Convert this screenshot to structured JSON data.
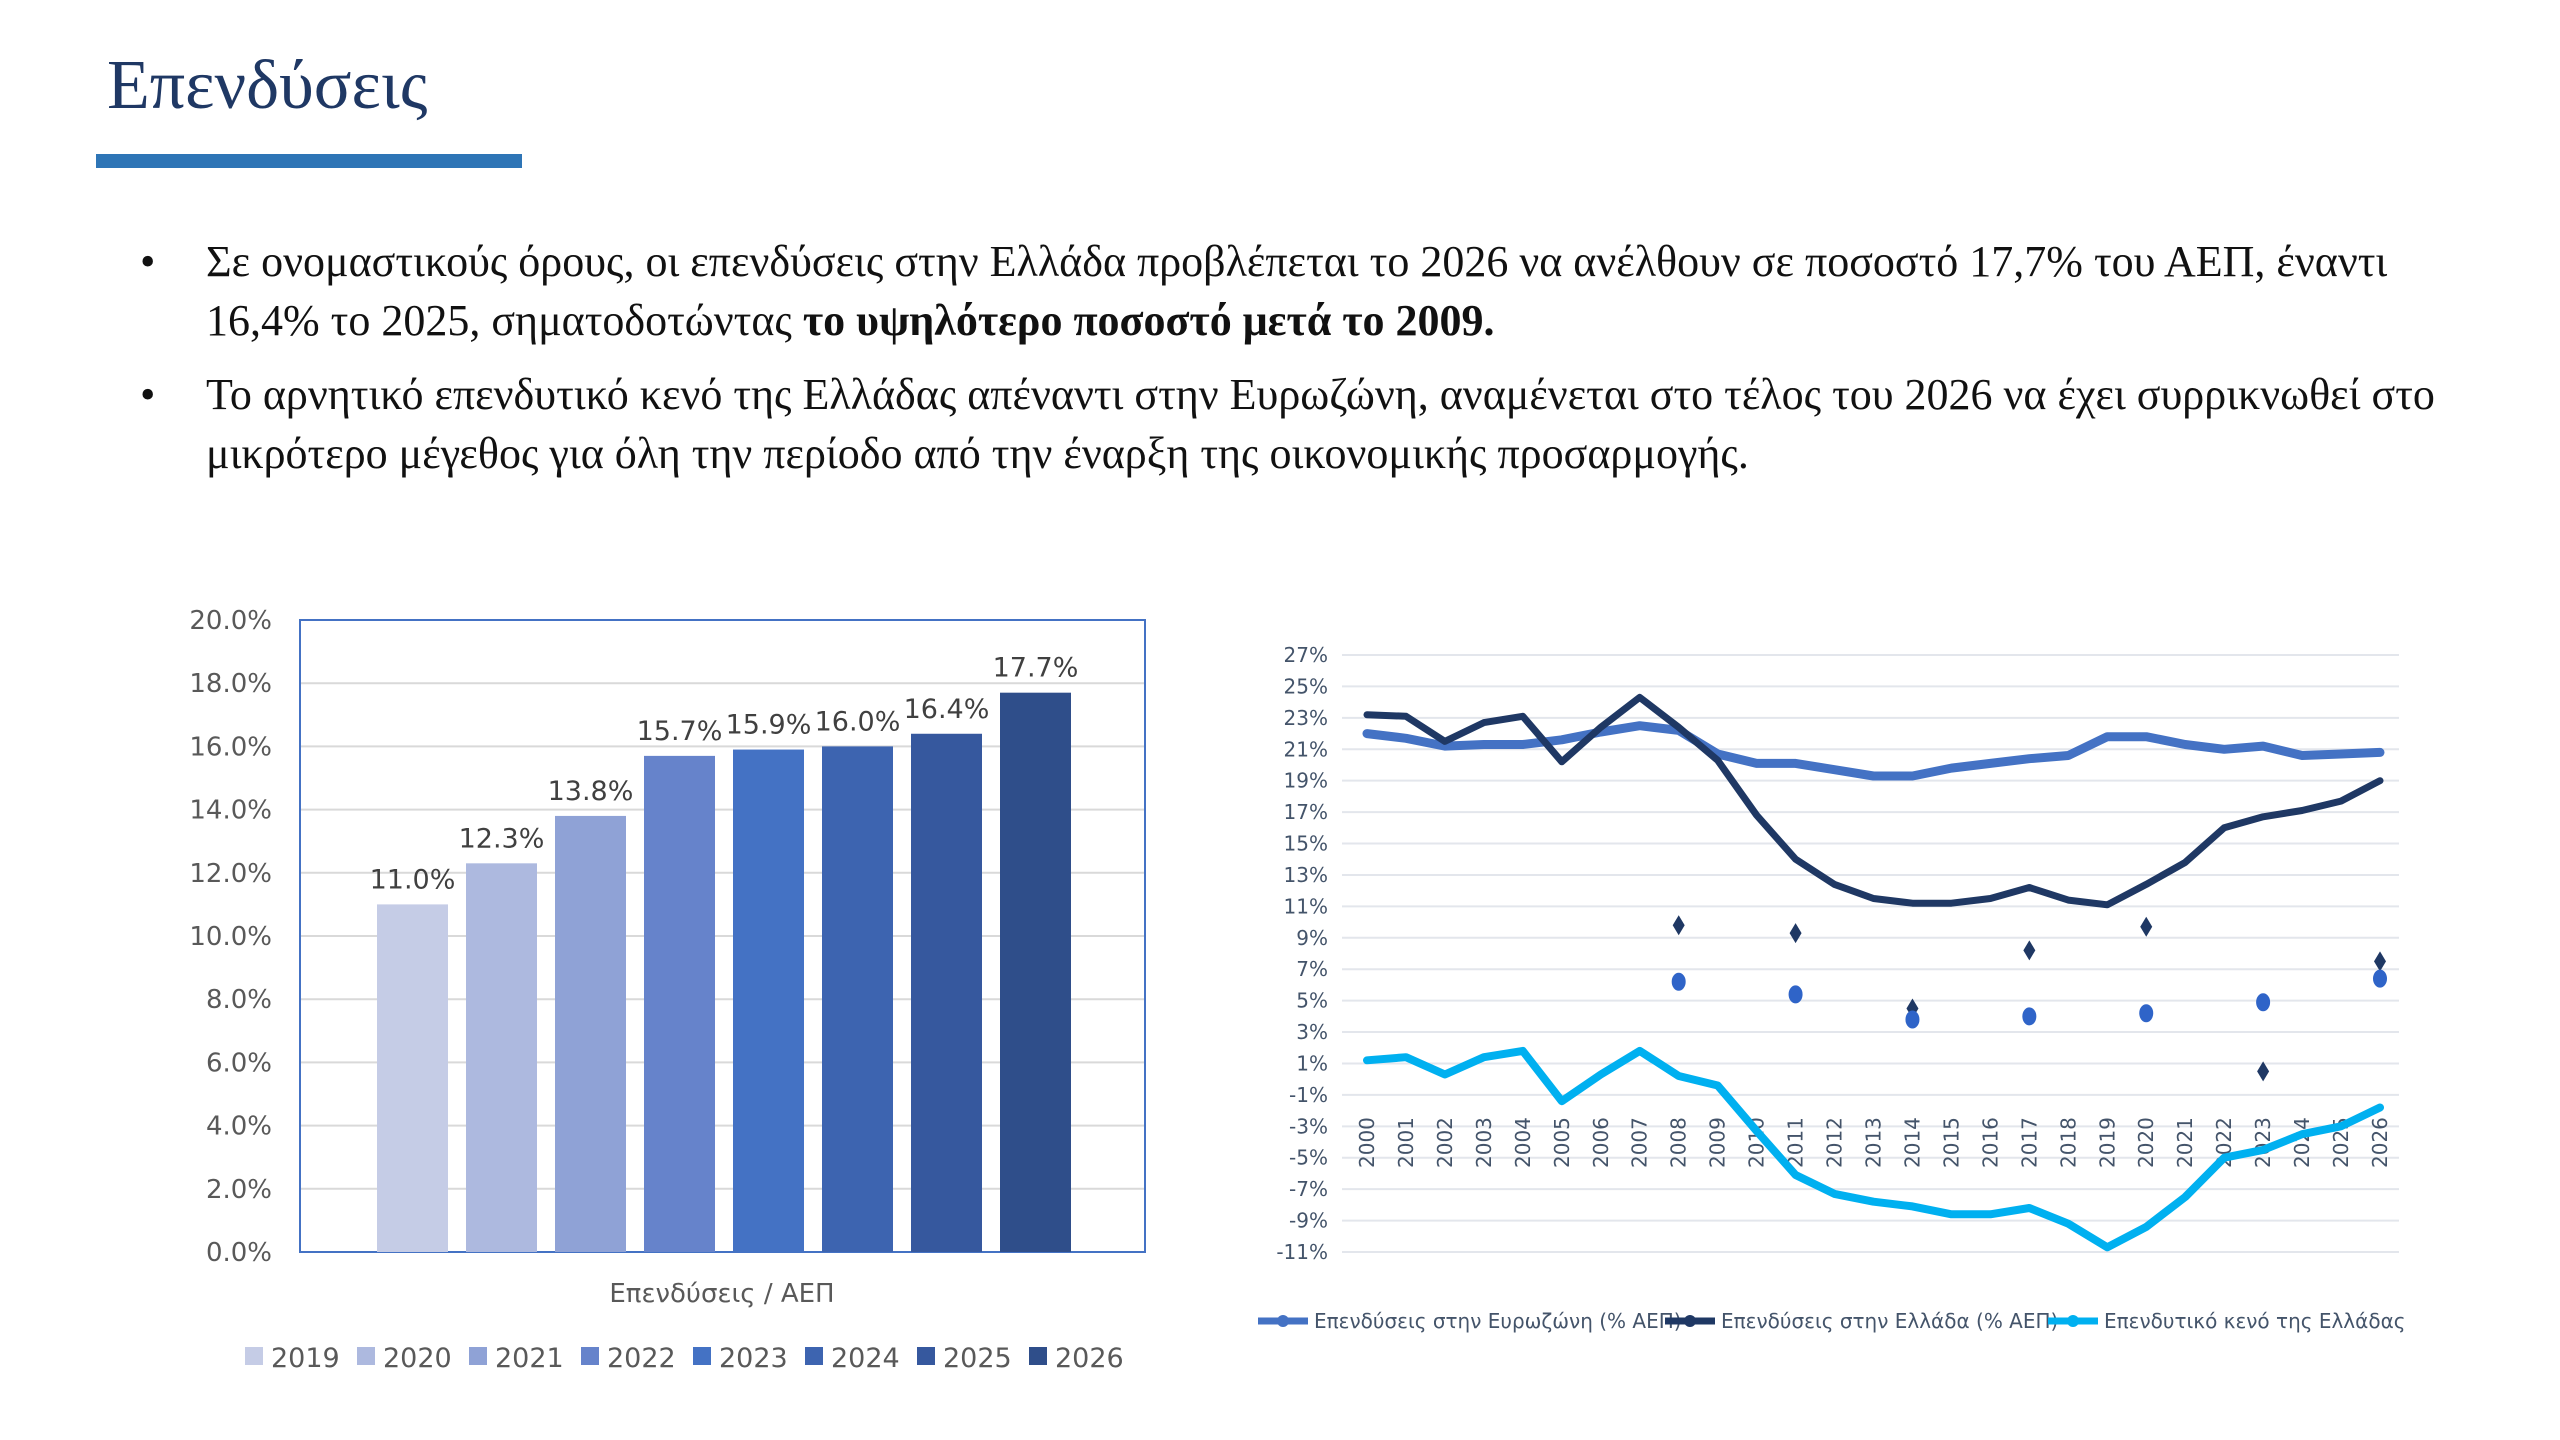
{
  "title": "Επενδύσεις",
  "bullets": [
    {
      "text": "Σε ονομαστικούς όρους, οι επενδύσεις στην Ελλάδα προβλέπεται το 2026 να ανέλθουν σε ποσοστό 17,7% του ΑΕΠ, έναντι 16,4% το 2025, σηματοδοτώντας ",
      "bold": "το υψηλότερο ποσοστό μετά το 2009."
    },
    {
      "text": "Το αρνητικό επενδυτικό κενό της Ελλάδας απέναντι στην Ευρωζώνη, αναμένεται στο τέλος του 2026 να έχει συρρικνωθεί στο μικρότερο μέγεθος για όλη την περίοδο από την έναρξη της οικονομικής προσαρμογής.",
      "bold": ""
    }
  ],
  "bullet_glyph": "•",
  "chart_data": [
    {
      "type": "bar",
      "xlabel": "Επενδύσεις / ΑΕΠ",
      "ylim": [
        0,
        20
      ],
      "yticks": [
        "0.0%",
        "2.0%",
        "4.0%",
        "6.0%",
        "8.0%",
        "10.0%",
        "12.0%",
        "14.0%",
        "16.0%",
        "18.0%",
        "20.0%"
      ],
      "grid": true,
      "legend": "bottom",
      "series": [
        {
          "name": "2019",
          "value": 11.0,
          "label": "11.0%",
          "color": "#c5cce6"
        },
        {
          "name": "2020",
          "value": 12.3,
          "label": "12.3%",
          "color": "#adb9df"
        },
        {
          "name": "2021",
          "value": 13.8,
          "label": "13.8%",
          "color": "#8fa2d6"
        },
        {
          "name": "2022",
          "value": 15.7,
          "label": "15.7%",
          "color": "#6683cb"
        },
        {
          "name": "2023",
          "value": 15.9,
          "label": "15.9%",
          "color": "#4472c4"
        },
        {
          "name": "2024",
          "value": 16.0,
          "label": "16.0%",
          "color": "#3d64b0"
        },
        {
          "name": "2025",
          "value": 16.4,
          "label": "16.4%",
          "color": "#36589e"
        },
        {
          "name": "2026",
          "value": 17.7,
          "label": "17.7%",
          "color": "#2f4e8a"
        }
      ]
    },
    {
      "type": "line",
      "ylim": [
        -11,
        27
      ],
      "yticks": [
        "-11%",
        "-9%",
        "-7%",
        "-5%",
        "-3%",
        "-1%",
        "1%",
        "3%",
        "5%",
        "7%",
        "9%",
        "11%",
        "13%",
        "15%",
        "17%",
        "19%",
        "21%",
        "23%",
        "25%",
        "27%"
      ],
      "x": [
        "2000",
        "2001",
        "2002",
        "2003",
        "2004",
        "2005",
        "2006",
        "2007",
        "2008",
        "2009",
        "2010",
        "2011",
        "2012",
        "2013",
        "2014",
        "2015",
        "2016",
        "2017",
        "2018",
        "2019",
        "2020",
        "2021",
        "2022",
        "2023",
        "2024",
        "2025",
        "2026"
      ],
      "grid": true,
      "legend": "bottom",
      "series": [
        {
          "name": "Επενδύσεις στην Ευρωζώνη (% ΑΕΠ)",
          "color": "#4472c4",
          "values": [
            22.0,
            21.7,
            21.2,
            21.3,
            21.3,
            21.6,
            22.1,
            22.5,
            22.2,
            20.7,
            20.1,
            20.1,
            19.7,
            19.3,
            19.3,
            19.8,
            20.1,
            20.4,
            20.6,
            21.8,
            21.8,
            21.3,
            21.0,
            21.2,
            20.6,
            20.7,
            20.8
          ]
        },
        {
          "name": "Επενδύσεις στην Ελλάδα (% ΑΕΠ)",
          "color": "#1f3864",
          "values": [
            23.2,
            23.1,
            21.5,
            22.7,
            23.1,
            20.2,
            22.4,
            24.3,
            22.4,
            20.3,
            16.8,
            14.0,
            12.4,
            11.5,
            11.2,
            11.2,
            11.5,
            12.2,
            11.4,
            11.1,
            12.4,
            13.8,
            16.0,
            16.7,
            17.1,
            17.7,
            19.0
          ]
        },
        {
          "name": "Επενδυτικό κενό της Ελλάδας",
          "color": "#00b0f0",
          "values": [
            1.2,
            1.4,
            0.3,
            1.4,
            1.8,
            -1.4,
            0.3,
            1.8,
            0.2,
            -0.4,
            -3.3,
            -6.1,
            -7.3,
            -7.8,
            -8.1,
            -8.6,
            -8.6,
            -8.2,
            -9.2,
            -10.7,
            -9.4,
            -7.5,
            -5.0,
            -4.5,
            -3.5,
            -3.0,
            -1.8
          ]
        }
      ],
      "stray_markers": {
        "diamond": {
          "color": "#1f3864",
          "points": [
            [
              "2008",
              9.8
            ],
            [
              "2011",
              9.3
            ],
            [
              "2014",
              4.5
            ],
            [
              "2017",
              8.2
            ],
            [
              "2020",
              9.7
            ],
            [
              "2023",
              0.5
            ],
            [
              "2026",
              7.5
            ]
          ]
        },
        "circle": {
          "color": "#2f64c8",
          "points": [
            [
              "2008",
              6.2
            ],
            [
              "2011",
              5.4
            ],
            [
              "2014",
              3.8
            ],
            [
              "2017",
              4.0
            ],
            [
              "2020",
              4.2
            ],
            [
              "2023",
              4.9
            ],
            [
              "2026",
              6.4
            ]
          ]
        }
      }
    }
  ]
}
